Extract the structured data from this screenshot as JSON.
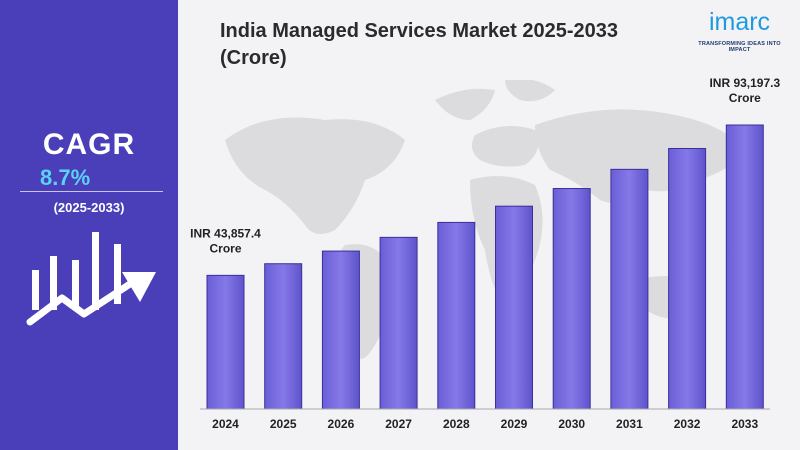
{
  "title": "India Managed Services Market 2025-2033 (Crore)",
  "brand": {
    "name": "imarc",
    "tagline": "TRANSFORMING IDEAS INTO IMPACT",
    "color": "#1e9be0"
  },
  "cagr": {
    "label": "CAGR",
    "value": "8.7%",
    "period": "(2025-2033)"
  },
  "colors": {
    "panel": "#4a3fb8",
    "bar": "#7b6fe0",
    "accent": "#5ad1f5"
  },
  "chart_data": {
    "type": "bar",
    "categories": [
      "2024",
      "2025",
      "2026",
      "2027",
      "2028",
      "2029",
      "2030",
      "2031",
      "2032",
      "2033"
    ],
    "values": [
      43857.4,
      47674,
      51822,
      56331,
      61232,
      66559,
      72350,
      78645,
      85487,
      93197.3
    ],
    "annotations": [
      {
        "category": "2024",
        "line1": "INR 43,857.4",
        "line2": "Crore"
      },
      {
        "category": "2033",
        "line1": "INR 93,197.3",
        "line2": "Crore"
      }
    ],
    "ylim": [
      0,
      100000
    ],
    "grid": false,
    "legend": "none"
  }
}
